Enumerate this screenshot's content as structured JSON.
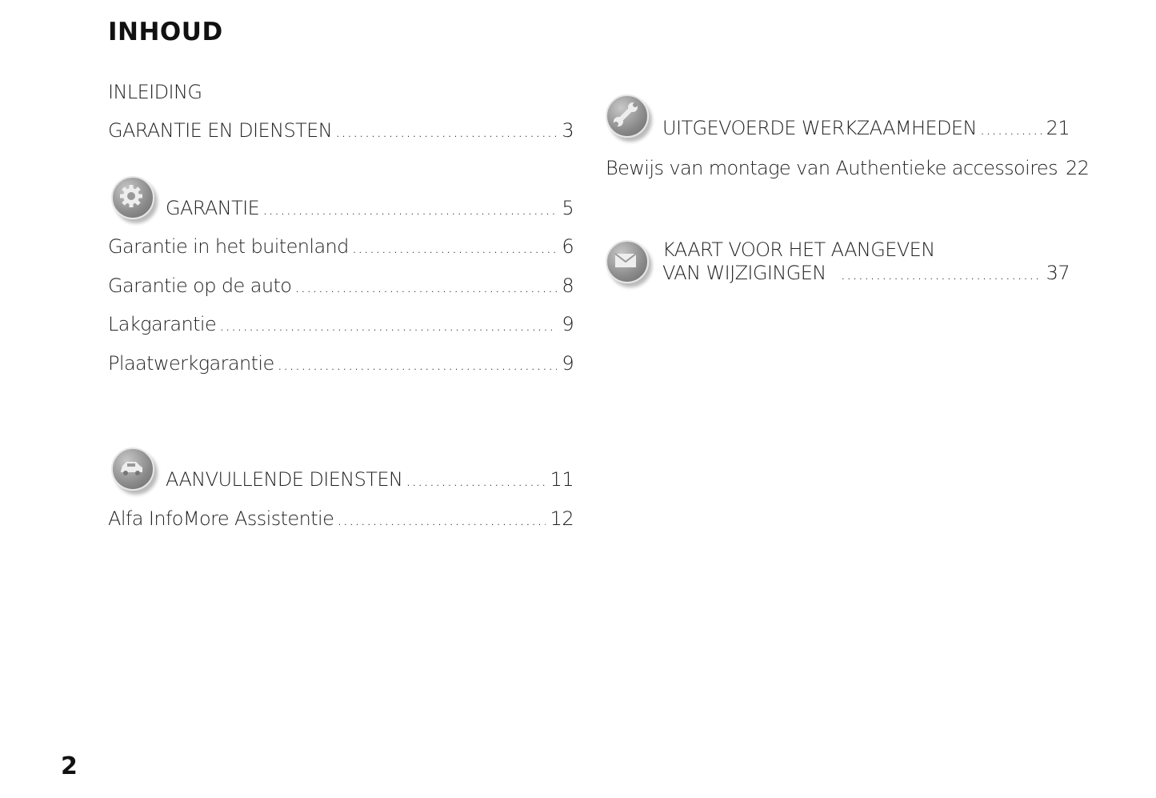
{
  "title": "INHOUD",
  "page_number": "2",
  "left": [
    {
      "label": "INLEIDING",
      "page": ""
    },
    {
      "label": "GARANTIE EN DIENSTEN",
      "page": "3"
    },
    {
      "label": "GARANTIE",
      "page": "5",
      "icon": "gear-icon"
    },
    {
      "label": "Garantie in het buitenland",
      "page": "6"
    },
    {
      "label": "Garantie op de auto",
      "page": "8"
    },
    {
      "label": "Lakgarantie",
      "page": "9"
    },
    {
      "label": "Plaatwerkgarantie",
      "page": "9"
    },
    {
      "label": "AANVULLENDE DIENSTEN",
      "page": "11",
      "icon": "car-icon"
    },
    {
      "label": "Alfa InfoMore Assistentie",
      "page": "12"
    }
  ],
  "right": [
    {
      "label": "UITGEVOERDE WERKZAAMHEDEN",
      "page": "21",
      "icon": "wrench-icon"
    },
    {
      "label": "Bewijs van montage van Authentieke accessoires",
      "page": "22"
    },
    {
      "label": "KAART VOOR HET AANGEVEN",
      "page": ""
    },
    {
      "label": "VAN WIJZIGINGEN",
      "page": "37",
      "icon": "envelope-icon"
    }
  ]
}
